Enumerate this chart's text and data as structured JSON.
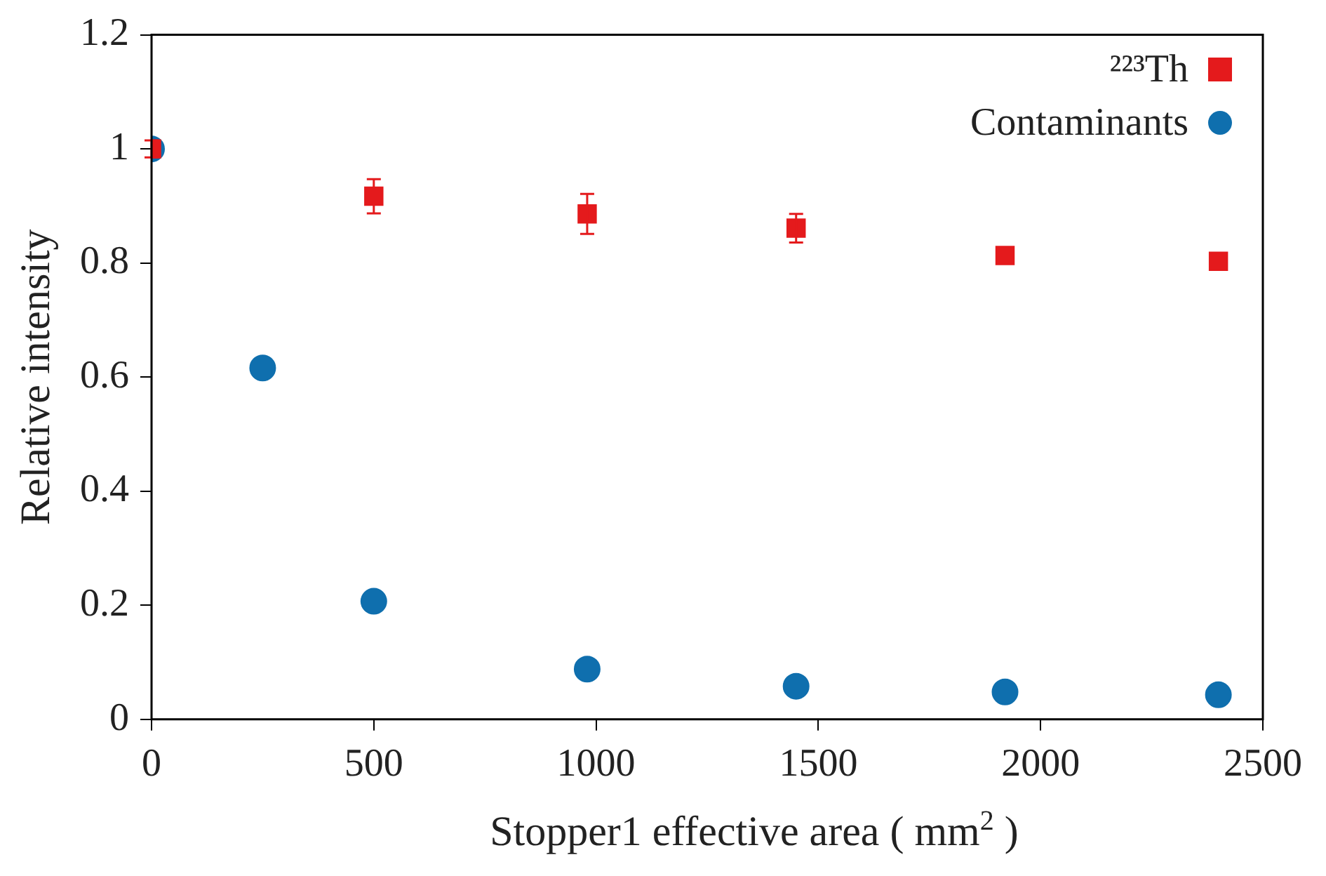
{
  "chart_data": {
    "type": "scatter",
    "xlabel": "Stopper1 effective area ( mm$^{2}$ )",
    "ylabel": "Relative intensity",
    "xlim": [
      0,
      2500
    ],
    "xticks": [
      0,
      500,
      1000,
      1500,
      2000,
      2500
    ],
    "ylim": [
      0,
      1.2
    ],
    "yticks": [
      0,
      0.2,
      0.4,
      0.6,
      0.8,
      1,
      1.2
    ],
    "grid": false,
    "legend": "top right",
    "series": [
      {
        "name": "²²³Th",
        "color": "#e41a1c",
        "marker": "square",
        "x": [
          0,
          500,
          980,
          1450,
          1920,
          2400
        ],
        "values": [
          1.0,
          0.917,
          0.886,
          0.861,
          0.813,
          0.803
        ],
        "errors": [
          0.015,
          0.03,
          0.035,
          0.025,
          null,
          null
        ]
      },
      {
        "name": "Contaminants",
        "color": "#0f6fae",
        "marker": "circle",
        "x": [
          0,
          250,
          500,
          980,
          1450,
          1920,
          2400
        ],
        "values": [
          1.0,
          0.616,
          0.207,
          0.088,
          0.058,
          0.048,
          0.043
        ]
      }
    ]
  }
}
